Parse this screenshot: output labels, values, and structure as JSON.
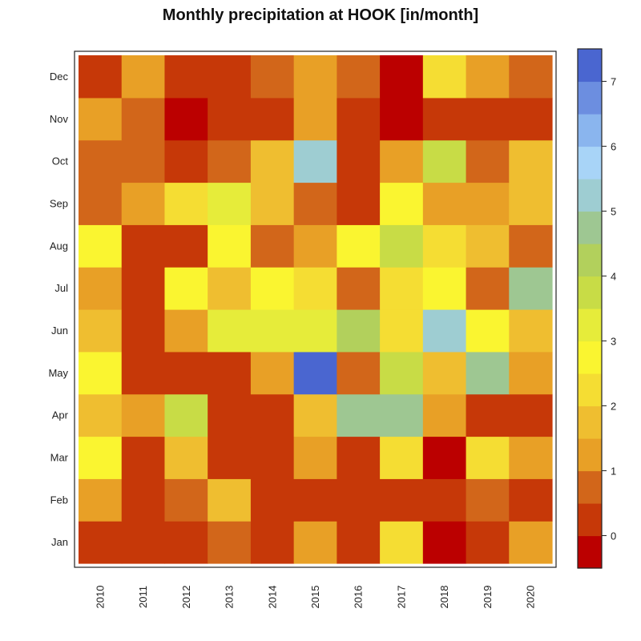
{
  "chart_data": {
    "type": "heatmap",
    "title": "Monthly precipitation at HOOK [in/month]",
    "x": [
      "2010",
      "2011",
      "2012",
      "2013",
      "2014",
      "2015",
      "2016",
      "2017",
      "2018",
      "2019",
      "2020"
    ],
    "y": [
      "Jan",
      "Feb",
      "Mar",
      "Apr",
      "May",
      "Jun",
      "Jul",
      "Aug",
      "Sep",
      "Oct",
      "Nov",
      "Dec"
    ],
    "values": [
      [
        0.2,
        0.2,
        0.3,
        0.7,
        0.3,
        1.2,
        0.3,
        2.2,
        -0.3,
        0.3,
        1.3
      ],
      [
        1.2,
        0.3,
        0.7,
        1.7,
        0.2,
        0.2,
        0.2,
        0.2,
        0.3,
        0.7,
        0.3
      ],
      [
        2.7,
        0.3,
        1.7,
        0.3,
        0.3,
        1.2,
        0.3,
        2.2,
        -0.3,
        2.2,
        1.3
      ],
      [
        1.7,
        1.2,
        3.7,
        0.3,
        0.3,
        1.7,
        4.7,
        4.7,
        1.2,
        0.3,
        0.3
      ],
      [
        2.7,
        0.3,
        0.3,
        0.3,
        1.2,
        7.0,
        0.7,
        3.7,
        1.7,
        4.7,
        1.2
      ],
      [
        1.7,
        0.3,
        1.2,
        3.2,
        3.2,
        3.2,
        4.2,
        2.2,
        5.2,
        2.7,
        1.7
      ],
      [
        1.2,
        0.3,
        2.7,
        1.7,
        2.7,
        2.2,
        0.7,
        2.2,
        2.7,
        0.7,
        4.7
      ],
      [
        2.7,
        0.3,
        0.3,
        2.7,
        0.7,
        1.2,
        2.7,
        3.7,
        2.2,
        1.7,
        0.7
      ],
      [
        0.7,
        1.2,
        2.2,
        3.2,
        1.7,
        0.7,
        0.3,
        2.7,
        1.2,
        1.2,
        1.7
      ],
      [
        0.7,
        0.7,
        0.3,
        0.7,
        1.7,
        5.2,
        0.3,
        1.2,
        3.7,
        0.7,
        1.7
      ],
      [
        1.2,
        0.7,
        -0.3,
        0.3,
        0.3,
        1.2,
        0.3,
        -0.3,
        0.3,
        0.3,
        0.3
      ],
      [
        0.3,
        1.2,
        0.3,
        0.3,
        0.7,
        1.2,
        0.7,
        -0.3,
        2.2,
        1.2,
        0.7
      ]
    ],
    "colorbar": {
      "min": -0.5,
      "max": 7.25,
      "step": 0.5,
      "ticks": [
        0,
        1,
        2,
        3,
        4,
        5,
        6,
        7
      ],
      "colors": [
        "#bb0000",
        "#c63808",
        "#d2661a",
        "#e8a026",
        "#efbe30",
        "#f5dd33",
        "#faf530",
        "#e6ec3a",
        "#c8dc46",
        "#b2d05c",
        "#9ec792",
        "#9ecdd2",
        "#a8d4f7",
        "#8ab5ee",
        "#6c8ee0",
        "#4a66d0"
      ]
    },
    "grid": false
  }
}
